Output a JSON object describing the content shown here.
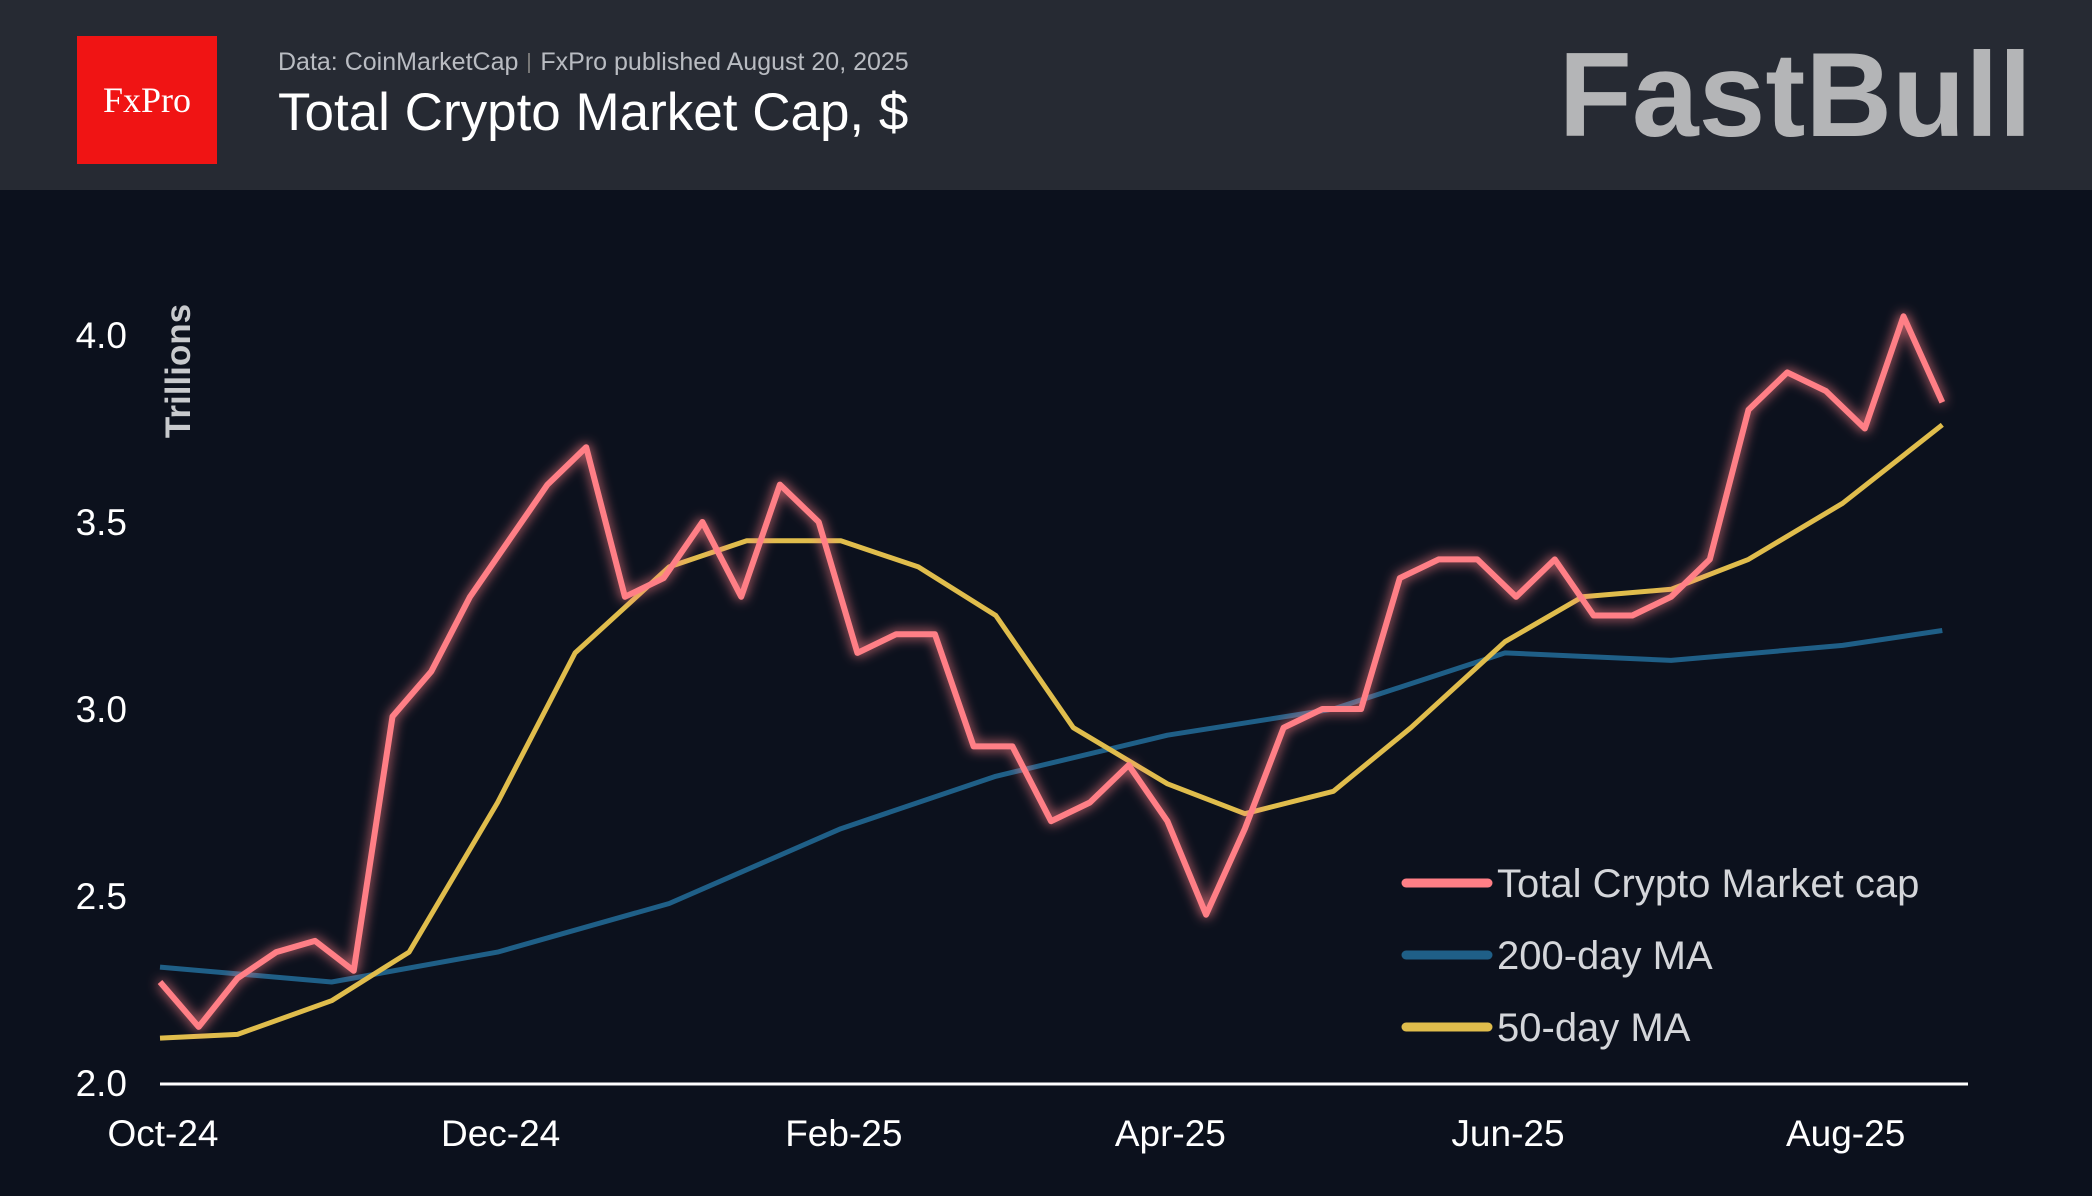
{
  "header": {
    "logo_text": "FxPro",
    "source": "Data: CoinMarketCap",
    "publisher": "FxPro published August 20, 2025",
    "title": "Total Crypto Market Cap, $"
  },
  "watermark": "FastBull",
  "colors": {
    "background": "#0c111d",
    "header": "#262a33",
    "total": "#ff7f86",
    "ma200": "#1f5f87",
    "ma50": "#e0bd4c"
  },
  "chart_data": {
    "type": "line",
    "title": "Total Crypto Market Cap, $",
    "ylabel": "Trillions",
    "ylim": [
      2.0,
      4.2
    ],
    "yticks": [
      "2.0",
      "2.5",
      "3.0",
      "3.5",
      "4.0"
    ],
    "xticks": [
      {
        "date": "2024-10-01",
        "label": "Oct-24"
      },
      {
        "date": "2024-12-01",
        "label": "Dec-24"
      },
      {
        "date": "2025-02-01",
        "label": "Feb-25"
      },
      {
        "date": "2025-04-01",
        "label": "Apr-25"
      },
      {
        "date": "2025-06-01",
        "label": "Jun-25"
      },
      {
        "date": "2025-08-01",
        "label": "Aug-25"
      }
    ],
    "xlim": [
      "2024-10-01",
      "2025-08-19"
    ],
    "grid": false,
    "legend": "bottom-right",
    "series": [
      {
        "name": "Total Crypto Market cap",
        "color": "#ff7f86",
        "points": [
          [
            "2024-10-01",
            2.27
          ],
          [
            "2024-10-08",
            2.15
          ],
          [
            "2024-10-15",
            2.28
          ],
          [
            "2024-10-22",
            2.35
          ],
          [
            "2024-10-29",
            2.38
          ],
          [
            "2024-11-05",
            2.3
          ],
          [
            "2024-11-12",
            2.98
          ],
          [
            "2024-11-19",
            3.1
          ],
          [
            "2024-11-26",
            3.3
          ],
          [
            "2024-12-03",
            3.45
          ],
          [
            "2024-12-10",
            3.6
          ],
          [
            "2024-12-17",
            3.7
          ],
          [
            "2024-12-24",
            3.3
          ],
          [
            "2024-12-31",
            3.35
          ],
          [
            "2025-01-07",
            3.5
          ],
          [
            "2025-01-14",
            3.3
          ],
          [
            "2025-01-21",
            3.6
          ],
          [
            "2025-01-28",
            3.5
          ],
          [
            "2025-02-04",
            3.15
          ],
          [
            "2025-02-11",
            3.2
          ],
          [
            "2025-02-18",
            3.2
          ],
          [
            "2025-02-25",
            2.9
          ],
          [
            "2025-03-04",
            2.9
          ],
          [
            "2025-03-11",
            2.7
          ],
          [
            "2025-03-18",
            2.75
          ],
          [
            "2025-03-25",
            2.85
          ],
          [
            "2025-04-01",
            2.7
          ],
          [
            "2025-04-08",
            2.45
          ],
          [
            "2025-04-15",
            2.68
          ],
          [
            "2025-04-22",
            2.95
          ],
          [
            "2025-04-29",
            3.0
          ],
          [
            "2025-05-06",
            3.0
          ],
          [
            "2025-05-13",
            3.35
          ],
          [
            "2025-05-20",
            3.4
          ],
          [
            "2025-05-27",
            3.4
          ],
          [
            "2025-06-03",
            3.3
          ],
          [
            "2025-06-10",
            3.4
          ],
          [
            "2025-06-17",
            3.25
          ],
          [
            "2025-06-24",
            3.25
          ],
          [
            "2025-07-01",
            3.3
          ],
          [
            "2025-07-08",
            3.4
          ],
          [
            "2025-07-15",
            3.8
          ],
          [
            "2025-07-22",
            3.9
          ],
          [
            "2025-07-29",
            3.85
          ],
          [
            "2025-08-05",
            3.75
          ],
          [
            "2025-08-12",
            4.05
          ],
          [
            "2025-08-19",
            3.82
          ]
        ]
      },
      {
        "name": "200-day MA",
        "color": "#1f5f87",
        "points": [
          [
            "2024-10-01",
            2.31
          ],
          [
            "2024-11-01",
            2.27
          ],
          [
            "2024-12-01",
            2.35
          ],
          [
            "2025-01-01",
            2.48
          ],
          [
            "2025-02-01",
            2.68
          ],
          [
            "2025-03-01",
            2.82
          ],
          [
            "2025-04-01",
            2.93
          ],
          [
            "2025-05-01",
            3.0
          ],
          [
            "2025-06-01",
            3.15
          ],
          [
            "2025-07-01",
            3.13
          ],
          [
            "2025-08-01",
            3.17
          ],
          [
            "2025-08-19",
            3.21
          ]
        ]
      },
      {
        "name": "50-day MA",
        "color": "#e0bd4c",
        "points": [
          [
            "2024-10-01",
            2.12
          ],
          [
            "2024-10-15",
            2.13
          ],
          [
            "2024-11-01",
            2.22
          ],
          [
            "2024-11-15",
            2.35
          ],
          [
            "2024-12-01",
            2.75
          ],
          [
            "2024-12-15",
            3.15
          ],
          [
            "2025-01-01",
            3.38
          ],
          [
            "2025-01-15",
            3.45
          ],
          [
            "2025-02-01",
            3.45
          ],
          [
            "2025-02-15",
            3.38
          ],
          [
            "2025-03-01",
            3.25
          ],
          [
            "2025-03-15",
            2.95
          ],
          [
            "2025-04-01",
            2.8
          ],
          [
            "2025-04-15",
            2.72
          ],
          [
            "2025-05-01",
            2.78
          ],
          [
            "2025-05-15",
            2.95
          ],
          [
            "2025-06-01",
            3.18
          ],
          [
            "2025-06-15",
            3.3
          ],
          [
            "2025-07-01",
            3.32
          ],
          [
            "2025-07-15",
            3.4
          ],
          [
            "2025-08-01",
            3.55
          ],
          [
            "2025-08-19",
            3.76
          ]
        ]
      }
    ]
  }
}
